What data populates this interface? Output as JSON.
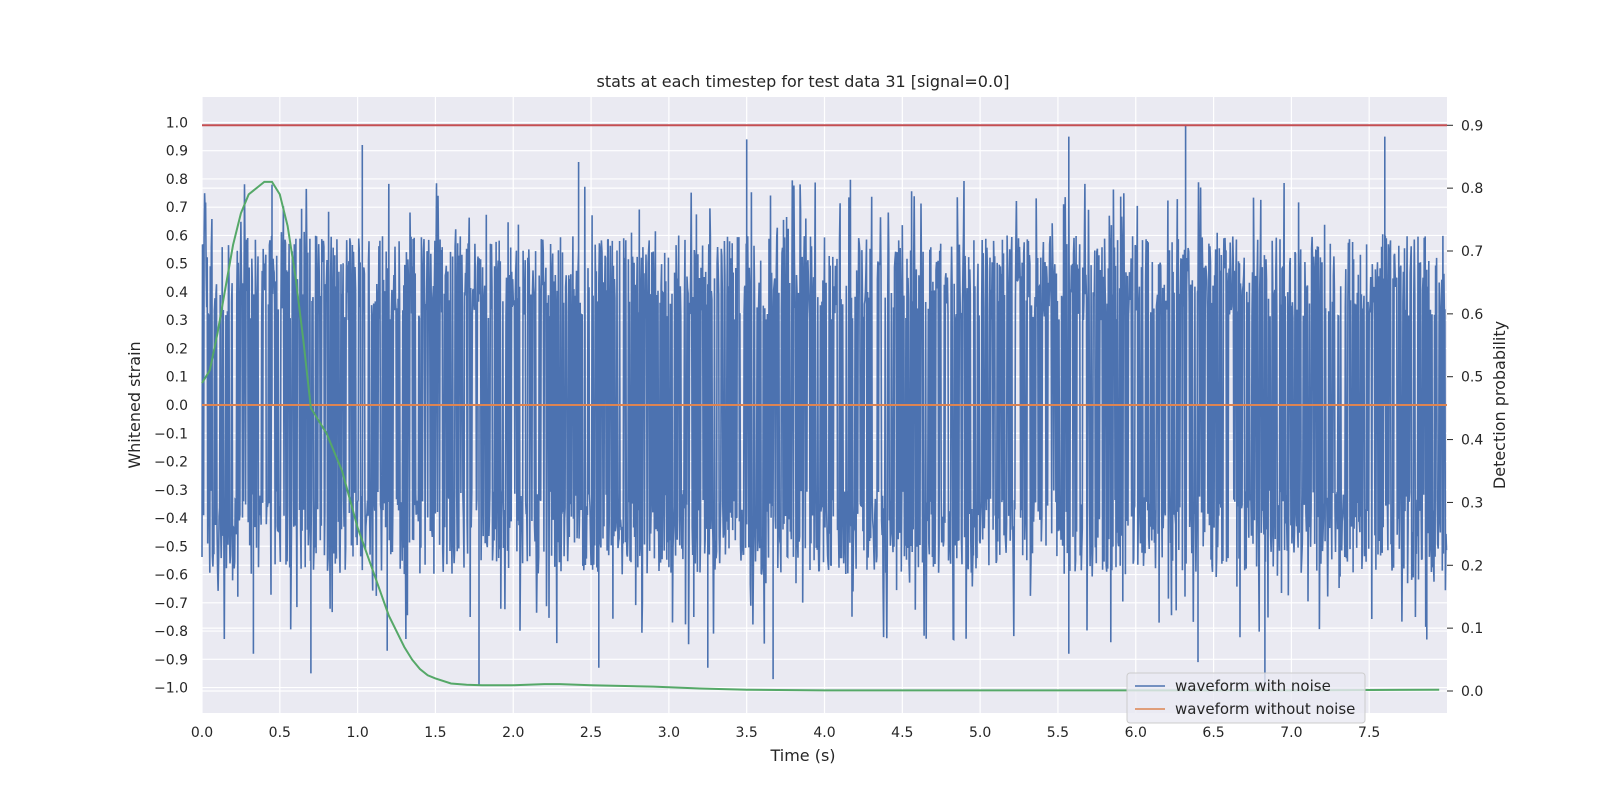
{
  "chart_data": {
    "type": "line",
    "title": "stats at each timestep for test data 31 [signal=0.0]",
    "xlabel": "Time (s)",
    "ylabel": "Whitened strain",
    "y2label": "Detection probability",
    "xlim": [
      0.0,
      8.0
    ],
    "ylim": [
      -1.09,
      1.09
    ],
    "y2lim": [
      -0.035,
      0.945
    ],
    "xticks": [
      "0.0",
      "0.5",
      "1.0",
      "1.5",
      "2.0",
      "2.5",
      "3.0",
      "3.5",
      "4.0",
      "4.5",
      "5.0",
      "5.5",
      "6.0",
      "6.5",
      "7.0",
      "7.5"
    ],
    "yticks": [
      "1.0",
      "0.9",
      "0.8",
      "0.7",
      "0.6",
      "0.5",
      "0.4",
      "0.3",
      "0.2",
      "0.1",
      "0.0",
      "−0.1",
      "−0.2",
      "−0.3",
      "−0.4",
      "−0.5",
      "−0.6",
      "−0.7",
      "−0.8",
      "−0.9",
      "−1.0"
    ],
    "y2ticks": [
      "0.9",
      "0.8",
      "0.7",
      "0.6",
      "0.5",
      "0.4",
      "0.3",
      "0.2",
      "0.1",
      "0.0"
    ],
    "grid": true,
    "legend_position": "bottom-right",
    "series": [
      {
        "name": "waveform with noise",
        "axis": "left",
        "color": "#4c72b0",
        "style": "dense noise",
        "typical_upper_envelope": [
          0.3,
          0.6
        ],
        "typical_lower_envelope": [
          -0.6,
          -0.3
        ],
        "peaks": [
          {
            "x": 0.45,
            "y": 0.78
          },
          {
            "x": 1.03,
            "y": 0.92
          },
          {
            "x": 2.42,
            "y": 0.86
          },
          {
            "x": 3.5,
            "y": 0.94
          },
          {
            "x": 5.57,
            "y": 0.95
          },
          {
            "x": 6.32,
            "y": 0.99
          },
          {
            "x": 7.6,
            "y": 0.95
          }
        ],
        "troughs": [
          {
            "x": 0.33,
            "y": -0.88
          },
          {
            "x": 0.7,
            "y": -0.95
          },
          {
            "x": 1.19,
            "y": -0.87
          },
          {
            "x": 1.78,
            "y": -0.99
          },
          {
            "x": 2.55,
            "y": -0.93
          },
          {
            "x": 3.25,
            "y": -0.93
          },
          {
            "x": 3.67,
            "y": -0.97
          },
          {
            "x": 5.57,
            "y": -0.88
          },
          {
            "x": 6.4,
            "y": -0.91
          },
          {
            "x": 6.83,
            "y": -0.99
          },
          {
            "x": 7.87,
            "y": -0.83
          }
        ]
      },
      {
        "name": "waveform without noise",
        "axis": "left",
        "color": "#dd8452",
        "x": [
          0.0,
          8.0
        ],
        "y": [
          0.0,
          0.0
        ]
      },
      {
        "axis": "right",
        "color": "#55a868",
        "x": [
          0.0,
          0.05,
          0.1,
          0.15,
          0.2,
          0.25,
          0.3,
          0.35,
          0.4,
          0.45,
          0.5,
          0.55,
          0.6,
          0.65,
          0.7,
          0.8,
          0.9,
          1.0,
          1.1,
          1.2,
          1.3,
          1.35,
          1.4,
          1.45,
          1.5,
          1.6,
          1.7,
          1.8,
          2.0,
          2.2,
          2.3,
          2.5,
          2.9,
          3.2,
          3.5,
          4.0,
          5.0,
          6.0,
          7.0,
          7.95
        ],
        "y": [
          0.49,
          0.51,
          0.57,
          0.64,
          0.71,
          0.76,
          0.79,
          0.8,
          0.81,
          0.81,
          0.79,
          0.74,
          0.66,
          0.56,
          0.45,
          0.41,
          0.35,
          0.26,
          0.19,
          0.12,
          0.07,
          0.05,
          0.035,
          0.025,
          0.02,
          0.012,
          0.01,
          0.009,
          0.009,
          0.011,
          0.011,
          0.009,
          0.007,
          0.004,
          0.002,
          0.001,
          0.001,
          0.001,
          0.001,
          0.002
        ]
      },
      {
        "axis": "right",
        "color": "#c44e52",
        "x": [
          0.0,
          8.0
        ],
        "y": [
          0.9,
          0.9
        ]
      }
    ]
  }
}
